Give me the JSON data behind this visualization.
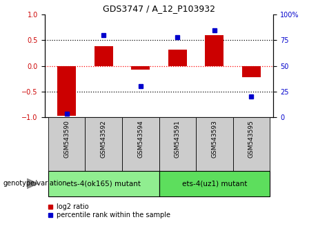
{
  "title": "GDS3747 / A_12_P103932",
  "samples": [
    "GSM543590",
    "GSM543592",
    "GSM543594",
    "GSM543591",
    "GSM543593",
    "GSM543595"
  ],
  "log2_ratio": [
    -0.97,
    0.38,
    -0.07,
    0.32,
    0.6,
    -0.22
  ],
  "percentile_rank": [
    3,
    80,
    30,
    78,
    85,
    20
  ],
  "groups": [
    {
      "label": "ets-4(ok165) mutant",
      "indices": [
        0,
        1,
        2
      ],
      "color": "#90ee90"
    },
    {
      "label": "ets-4(uz1) mutant",
      "indices": [
        3,
        4,
        5
      ],
      "color": "#5dde5d"
    }
  ],
  "bar_color": "#cc0000",
  "dot_color": "#0000cc",
  "ylim_left": [
    -1.0,
    1.0
  ],
  "ylim_right": [
    0,
    100
  ],
  "yticks_left": [
    -1.0,
    -0.5,
    0.0,
    0.5,
    1.0
  ],
  "yticks_right": [
    0,
    25,
    50,
    75,
    100
  ],
  "tick_color_left": "#cc0000",
  "tick_color_right": "#0000cc",
  "group_label": "genotype/variation",
  "legend_bar_label": "log2 ratio",
  "legend_dot_label": "percentile rank within the sample",
  "sample_box_color": "#cccccc",
  "bar_width": 0.5
}
